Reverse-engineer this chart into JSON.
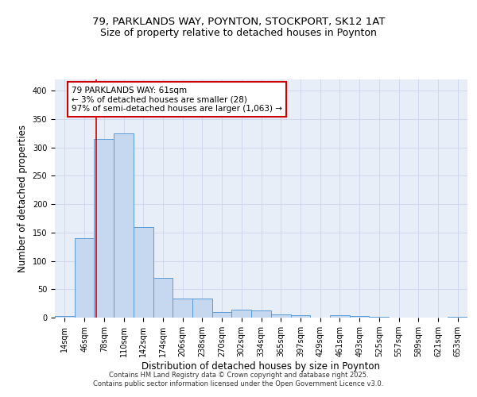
{
  "title_line1": "79, PARKLANDS WAY, POYNTON, STOCKPORT, SK12 1AT",
  "title_line2": "Size of property relative to detached houses in Poynton",
  "xlabel": "Distribution of detached houses by size in Poynton",
  "ylabel": "Number of detached properties",
  "bin_labels": [
    "14sqm",
    "46sqm",
    "78sqm",
    "110sqm",
    "142sqm",
    "174sqm",
    "206sqm",
    "238sqm",
    "270sqm",
    "302sqm",
    "334sqm",
    "365sqm",
    "397sqm",
    "429sqm",
    "461sqm",
    "493sqm",
    "525sqm",
    "557sqm",
    "589sqm",
    "621sqm",
    "653sqm"
  ],
  "bar_heights": [
    3,
    140,
    315,
    325,
    160,
    70,
    33,
    33,
    10,
    14,
    13,
    6,
    4,
    0,
    4,
    3,
    1,
    0,
    0,
    0,
    2
  ],
  "bar_color": "#c5d8f0",
  "bar_edge_color": "#5b9bd5",
  "red_line_x": 1.62,
  "annotation_text": "79 PARKLANDS WAY: 61sqm\n← 3% of detached houses are smaller (28)\n97% of semi-detached houses are larger (1,063) →",
  "annotation_box_color": "#ffffff",
  "annotation_box_edge_color": "#cc0000",
  "annotation_text_color": "#000000",
  "red_line_color": "#cc0000",
  "ylim": [
    0,
    420
  ],
  "yticks": [
    0,
    50,
    100,
    150,
    200,
    250,
    300,
    350,
    400
  ],
  "grid_color": "#d0d8f0",
  "background_color": "#e8eef8",
  "footer_text": "Contains HM Land Registry data © Crown copyright and database right 2025.\nContains public sector information licensed under the Open Government Licence v3.0.",
  "title_fontsize": 9.5,
  "subtitle_fontsize": 9.0,
  "axis_label_fontsize": 8.5,
  "tick_fontsize": 7.0,
  "annotation_fontsize": 7.5,
  "footer_fontsize": 6.0
}
